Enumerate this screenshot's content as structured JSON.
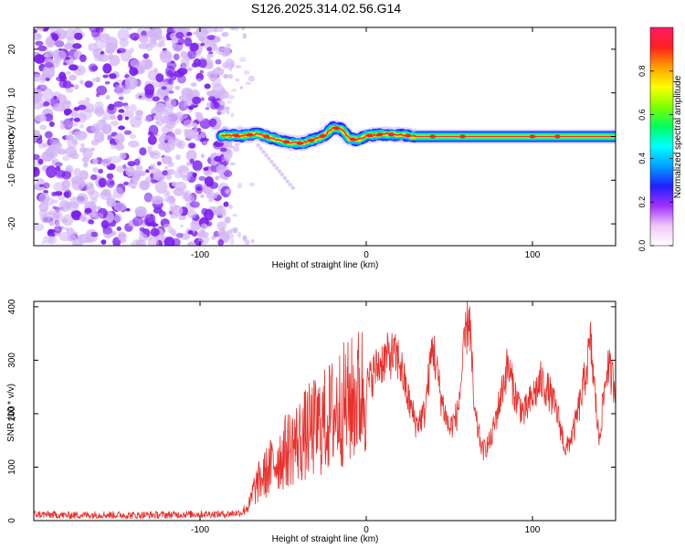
{
  "title": "S126.2025.314.02.56.G14",
  "colors": {
    "axis": "#000000",
    "noise": "#7a1cf0",
    "noise_light": "#d2b4f7",
    "snr_line": "#e8302c"
  },
  "chart_data": [
    {
      "type": "heatmap",
      "title": "S126.2025.314.02.56.G14",
      "xlabel": "Height of straight line (km)",
      "ylabel": "Frequency (Hz)",
      "xlim": [
        -200,
        150
      ],
      "ylim": [
        -25,
        25
      ],
      "x_ticks": [
        -100,
        0,
        100
      ],
      "x_tick_labels": [
        "-100",
        "0",
        "100"
      ],
      "y_ticks": [
        -20,
        -10,
        0,
        10,
        20
      ],
      "y_tick_labels": [
        "-20",
        "-10",
        "0",
        "10",
        "20"
      ],
      "noise_region_x": [
        -200,
        -82
      ],
      "signal": {
        "x_start": -87,
        "x_end": 150,
        "frequency_track": [
          {
            "x": -87,
            "y": 0.3
          },
          {
            "x": -75,
            "y": 0.2
          },
          {
            "x": -65,
            "y": 0.6
          },
          {
            "x": -55,
            "y": -0.6
          },
          {
            "x": -45,
            "y": -1.5
          },
          {
            "x": -38,
            "y": -1.5
          },
          {
            "x": -30,
            "y": -0.5
          },
          {
            "x": -25,
            "y": 0.3
          },
          {
            "x": -20,
            "y": 2.0
          },
          {
            "x": -15,
            "y": 1.8
          },
          {
            "x": -10,
            "y": -0.5
          },
          {
            "x": -5,
            "y": -0.8
          },
          {
            "x": 0,
            "y": 0.2
          },
          {
            "x": 10,
            "y": 0.5
          },
          {
            "x": 20,
            "y": 0.4
          },
          {
            "x": 30,
            "y": 0.0
          },
          {
            "x": 150,
            "y": 0.0
          }
        ]
      },
      "colorbar": {
        "label": "Normalized spectral amplitude",
        "range": [
          0,
          1
        ],
        "ticks": [
          0.0,
          0.2,
          0.4,
          0.6,
          0.8
        ],
        "tick_labels": [
          "0.0",
          "0.2",
          "0.4",
          "0.6",
          "0.8"
        ],
        "colormap": [
          "#ffffff",
          "#f0c8f8",
          "#a030ff",
          "#2020ff",
          "#00a0ff",
          "#00ffff",
          "#00ff60",
          "#80ff00",
          "#ffff00",
          "#ffa000",
          "#ff2020",
          "#ff1a66"
        ]
      }
    },
    {
      "type": "line",
      "xlabel": "Height of straight line (km)",
      "ylabel": "SNR (10 * v/v)",
      "xlim": [
        -200,
        150
      ],
      "ylim": [
        0,
        410
      ],
      "x_ticks": [
        -100,
        0,
        100
      ],
      "x_tick_labels": [
        "-100",
        "0",
        "100"
      ],
      "y_ticks": [
        0,
        100,
        200,
        300,
        400
      ],
      "y_tick_labels": [
        "0",
        "100",
        "200",
        "300",
        "400"
      ],
      "series": [
        {
          "name": "SNR",
          "color": "#e8302c",
          "x": [
            -200,
            -180,
            -160,
            -140,
            -120,
            -100,
            -85,
            -75,
            -70,
            -68,
            -65,
            -60,
            -55,
            -50,
            -45,
            -40,
            -35,
            -30,
            -25,
            -20,
            -15,
            -10,
            -5,
            0,
            5,
            10,
            15,
            20,
            25,
            30,
            35,
            40,
            45,
            50,
            55,
            60,
            62,
            65,
            70,
            75,
            80,
            85,
            90,
            95,
            100,
            105,
            110,
            115,
            120,
            125,
            130,
            135,
            140,
            145,
            150
          ],
          "y": [
            12,
            10,
            11,
            10,
            11,
            12,
            12,
            15,
            30,
            55,
            70,
            90,
            110,
            125,
            140,
            150,
            165,
            175,
            185,
            200,
            215,
            220,
            235,
            250,
            280,
            300,
            310,
            300,
            230,
            180,
            200,
            330,
            230,
            170,
            200,
            350,
            390,
            200,
            130,
            150,
            220,
            290,
            230,
            200,
            230,
            260,
            240,
            200,
            130,
            170,
            240,
            330,
            150,
            290,
            250
          ]
        }
      ]
    }
  ]
}
